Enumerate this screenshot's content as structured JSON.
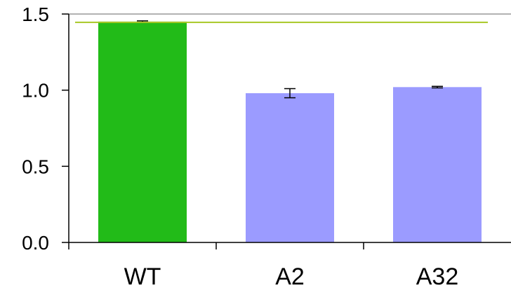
{
  "chart_data": {
    "type": "bar",
    "categories": [
      "WT",
      "A2",
      "A32"
    ],
    "values": [
      1.45,
      0.98,
      1.02
    ],
    "errors": [
      0.005,
      0.03,
      0.005
    ],
    "ylim": [
      0,
      1.5
    ],
    "yticks": [
      0.0,
      0.5,
      1.0,
      1.5
    ],
    "ytick_labels": [
      "0.0",
      "0.5",
      "1.0",
      "1.5"
    ],
    "title": "",
    "xlabel": "",
    "ylabel": "",
    "reference_line": 1.45,
    "grid": false,
    "colors": {
      "bars": [
        "#22bb18",
        "#9b9bff",
        "#9b9bff"
      ],
      "reference_line": "#a8c826",
      "axis": "#000000",
      "frame": "#999999",
      "error_bars": "#000000"
    }
  }
}
